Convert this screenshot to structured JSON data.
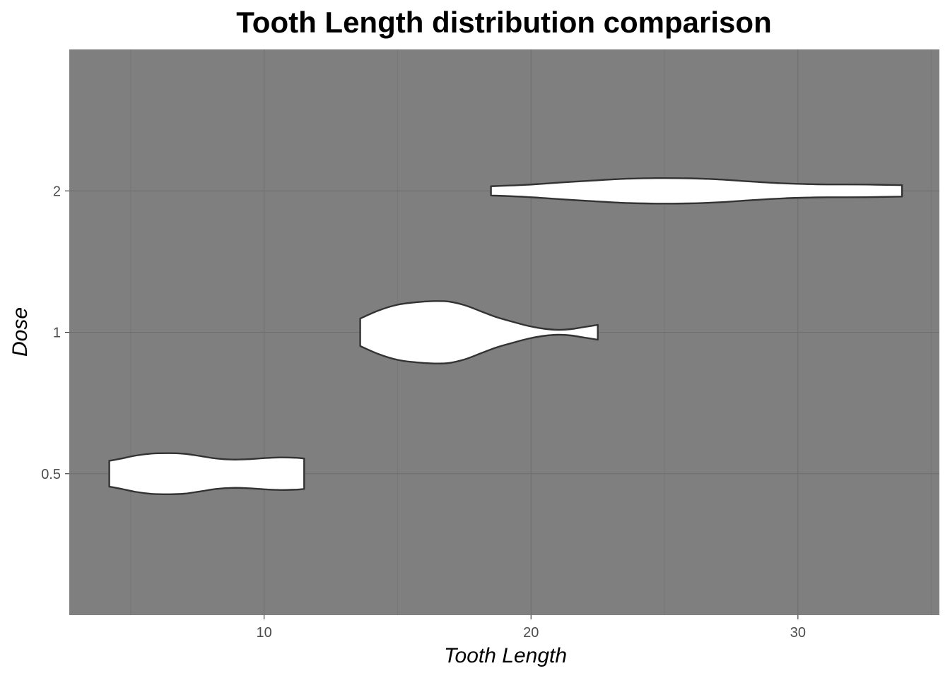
{
  "chart_data": {
    "type": "violin",
    "title": "Tooth Length distribution comparison",
    "xlabel": "Tooth Length",
    "ylabel": "Dose",
    "orientation": "horizontal",
    "xlim": [
      2.7,
      35.3
    ],
    "x_ticks": [
      10,
      20,
      30
    ],
    "x_tick_labels": [
      "10",
      "20",
      "30"
    ],
    "categories": [
      "0.5",
      "1",
      "2"
    ],
    "grid": true,
    "legend": "none",
    "colors": {
      "panel_background": "#7f7f7f",
      "violin_fill": "#ffffff",
      "violin_outline": "#333333"
    },
    "series": [
      {
        "category": "0.5",
        "min": 4.2,
        "max": 11.5,
        "profile": [
          {
            "x": 4.2,
            "width": 0.366
          },
          {
            "x": 4.6,
            "width": 0.42
          },
          {
            "x": 5.2,
            "width": 0.515
          },
          {
            "x": 5.8,
            "width": 0.57
          },
          {
            "x": 6.4,
            "width": 0.58
          },
          {
            "x": 7.0,
            "width": 0.565
          },
          {
            "x": 7.6,
            "width": 0.5
          },
          {
            "x": 8.2,
            "width": 0.43
          },
          {
            "x": 8.8,
            "width": 0.4
          },
          {
            "x": 9.4,
            "width": 0.41
          },
          {
            "x": 10.0,
            "width": 0.44
          },
          {
            "x": 10.6,
            "width": 0.46
          },
          {
            "x": 11.2,
            "width": 0.45
          },
          {
            "x": 11.5,
            "width": 0.43
          }
        ]
      },
      {
        "category": "1",
        "min": 13.6,
        "max": 22.5,
        "profile": [
          {
            "x": 13.6,
            "width": 0.39
          },
          {
            "x": 14.3,
            "width": 0.62
          },
          {
            "x": 15.0,
            "width": 0.78
          },
          {
            "x": 15.7,
            "width": 0.85
          },
          {
            "x": 16.3,
            "width": 0.88
          },
          {
            "x": 16.9,
            "width": 0.87
          },
          {
            "x": 17.5,
            "width": 0.77
          },
          {
            "x": 18.1,
            "width": 0.6
          },
          {
            "x": 18.7,
            "width": 0.43
          },
          {
            "x": 19.3,
            "width": 0.3
          },
          {
            "x": 19.9,
            "width": 0.18
          },
          {
            "x": 20.5,
            "width": 0.1
          },
          {
            "x": 21.0,
            "width": 0.07
          },
          {
            "x": 21.5,
            "width": 0.09
          },
          {
            "x": 22.0,
            "width": 0.15
          },
          {
            "x": 22.5,
            "width": 0.21
          }
        ]
      },
      {
        "category": "2",
        "min": 18.5,
        "max": 33.9,
        "profile": [
          {
            "x": 18.5,
            "width": 0.13
          },
          {
            "x": 19.8,
            "width": 0.17
          },
          {
            "x": 21.0,
            "width": 0.23
          },
          {
            "x": 22.3,
            "width": 0.29
          },
          {
            "x": 23.5,
            "width": 0.34
          },
          {
            "x": 24.7,
            "width": 0.36
          },
          {
            "x": 25.9,
            "width": 0.355
          },
          {
            "x": 27.1,
            "width": 0.32
          },
          {
            "x": 28.3,
            "width": 0.26
          },
          {
            "x": 29.5,
            "width": 0.21
          },
          {
            "x": 30.7,
            "width": 0.185
          },
          {
            "x": 31.9,
            "width": 0.18
          },
          {
            "x": 32.9,
            "width": 0.175
          },
          {
            "x": 33.9,
            "width": 0.16
          }
        ]
      }
    ]
  }
}
